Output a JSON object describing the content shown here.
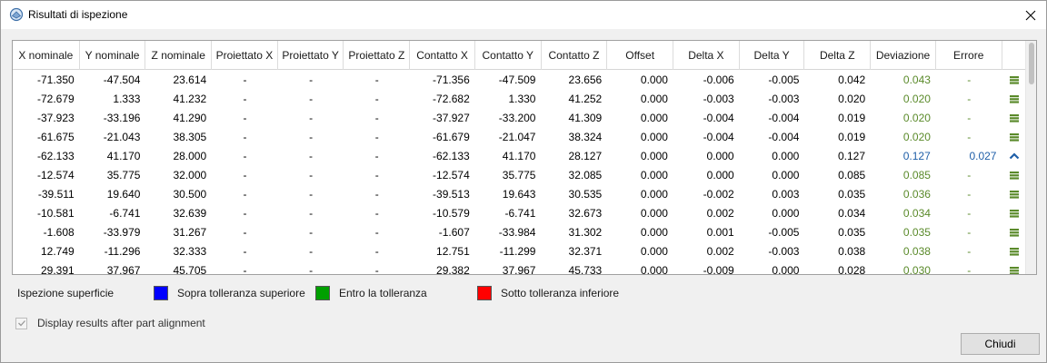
{
  "window": {
    "title": "Risultati di ispezione"
  },
  "table": {
    "columns": [
      "X nominale",
      "Y nominale",
      "Z nominale",
      "Proiettato X",
      "Proiettato Y",
      "Proiettato Z",
      "Contatto X",
      "Contatto Y",
      "Contatto Z",
      "Offset",
      "Delta X",
      "Delta Y",
      "Delta Z",
      "Deviazione",
      "Errore",
      ""
    ],
    "rows": [
      [
        "-71.350",
        "-47.504",
        "23.614",
        "-",
        "-",
        "-",
        "-71.356",
        "-47.509",
        "23.656",
        "0.000",
        "-0.006",
        "-0.005",
        "0.042",
        "0.043",
        "-",
        "ok"
      ],
      [
        "-72.679",
        "1.333",
        "41.232",
        "-",
        "-",
        "-",
        "-72.682",
        "1.330",
        "41.252",
        "0.000",
        "-0.003",
        "-0.003",
        "0.020",
        "0.020",
        "-",
        "ok"
      ],
      [
        "-37.923",
        "-33.196",
        "41.290",
        "-",
        "-",
        "-",
        "-37.927",
        "-33.200",
        "41.309",
        "0.000",
        "-0.004",
        "-0.004",
        "0.019",
        "0.020",
        "-",
        "ok"
      ],
      [
        "-61.675",
        "-21.043",
        "38.305",
        "-",
        "-",
        "-",
        "-61.679",
        "-21.047",
        "38.324",
        "0.000",
        "-0.004",
        "-0.004",
        "0.019",
        "0.020",
        "-",
        "ok"
      ],
      [
        "-62.133",
        "41.170",
        "28.000",
        "-",
        "-",
        "-",
        "-62.133",
        "41.170",
        "28.127",
        "0.000",
        "0.000",
        "0.000",
        "0.127",
        "0.127",
        "0.027",
        "above"
      ],
      [
        "-12.574",
        "35.775",
        "32.000",
        "-",
        "-",
        "-",
        "-12.574",
        "35.775",
        "32.085",
        "0.000",
        "0.000",
        "0.000",
        "0.085",
        "0.085",
        "-",
        "ok"
      ],
      [
        "-39.511",
        "19.640",
        "30.500",
        "-",
        "-",
        "-",
        "-39.513",
        "19.643",
        "30.535",
        "0.000",
        "-0.002",
        "0.003",
        "0.035",
        "0.036",
        "-",
        "ok"
      ],
      [
        "-10.581",
        "-6.741",
        "32.639",
        "-",
        "-",
        "-",
        "-10.579",
        "-6.741",
        "32.673",
        "0.000",
        "0.002",
        "0.000",
        "0.034",
        "0.034",
        "-",
        "ok"
      ],
      [
        "-1.608",
        "-33.979",
        "31.267",
        "-",
        "-",
        "-",
        "-1.607",
        "-33.984",
        "31.302",
        "0.000",
        "0.001",
        "-0.005",
        "0.035",
        "0.035",
        "-",
        "ok"
      ],
      [
        "12.749",
        "-11.296",
        "32.333",
        "-",
        "-",
        "-",
        "12.751",
        "-11.299",
        "32.371",
        "0.000",
        "0.002",
        "-0.003",
        "0.038",
        "0.038",
        "-",
        "ok"
      ],
      [
        "29.391",
        "37.967",
        "45.705",
        "-",
        "-",
        "-",
        "29.382",
        "37.967",
        "45.733",
        "0.000",
        "-0.009",
        "0.000",
        "0.028",
        "0.030",
        "-",
        "ok"
      ]
    ]
  },
  "legend": {
    "label": "Ispezione superficie",
    "items": [
      {
        "text": "Sopra tolleranza superiore",
        "color": "#0000ff"
      },
      {
        "text": "Entro la tolleranza",
        "color": "#00a000"
      },
      {
        "text": "Sotto tolleranza inferiore",
        "color": "#ff0000"
      }
    ]
  },
  "options": {
    "display_after_alignment": "Display results after part alignment"
  },
  "buttons": {
    "close": "Chiudi"
  },
  "colors": {
    "in_tolerance": "#5a8a2a",
    "above_tolerance": "#1f5fa8"
  },
  "icons": {
    "ok": "equals-icon",
    "above": "chevron-up-icon",
    "close": "close-icon",
    "app": "inspection-app-icon"
  }
}
